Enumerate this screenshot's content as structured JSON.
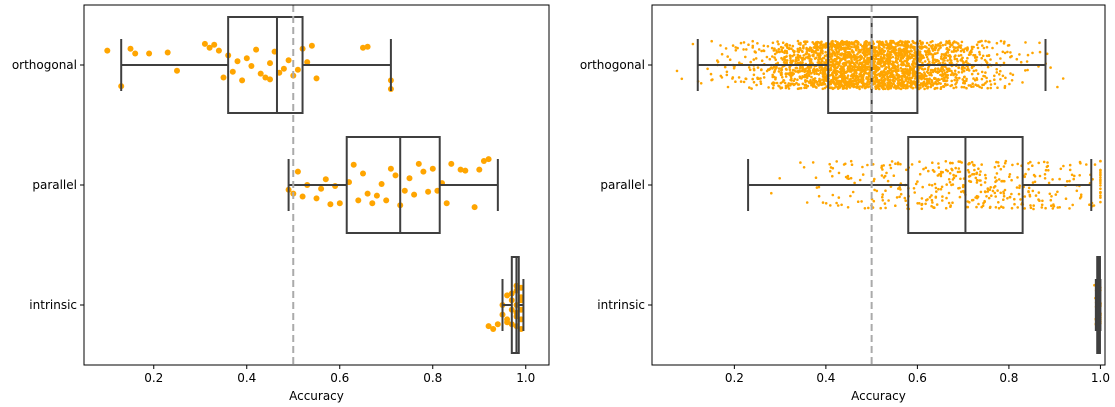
{
  "chart_data": [
    {
      "type": "box",
      "orientation": "horizontal",
      "title": "",
      "xlabel": "Accuracy",
      "ylabel": "",
      "xlim": [
        0.05,
        1.05
      ],
      "xticks": [
        0.2,
        0.4,
        0.6,
        0.8,
        1.0
      ],
      "xtick_labels": [
        "0.2",
        "0.4",
        "0.6",
        "0.8",
        "1.0"
      ],
      "reference_line": {
        "x": 0.5,
        "style": "dashed",
        "color": "#aaaaaa"
      },
      "categories": [
        "orthogonal",
        "parallel",
        "intrinsic"
      ],
      "boxes": [
        {
          "category": "orthogonal",
          "whisker_low": 0.13,
          "q1": 0.36,
          "median": 0.465,
          "q3": 0.52,
          "whisker_high": 0.71
        },
        {
          "category": "parallel",
          "whisker_low": 0.49,
          "q1": 0.615,
          "median": 0.73,
          "q3": 0.815,
          "whisker_high": 0.94
        },
        {
          "category": "intrinsic",
          "whisker_low": 0.95,
          "q1": 0.97,
          "median": 0.98,
          "q3": 0.985,
          "whisker_high": 0.995
        }
      ],
      "points": {
        "orthogonal": [
          [
            0.1,
            -0.15
          ],
          [
            0.13,
            0.22
          ],
          [
            0.15,
            -0.17
          ],
          [
            0.16,
            -0.12
          ],
          [
            0.19,
            -0.12
          ],
          [
            0.23,
            -0.13
          ],
          [
            0.25,
            0.06
          ],
          [
            0.31,
            -0.22
          ],
          [
            0.32,
            -0.18
          ],
          [
            0.33,
            -0.21
          ],
          [
            0.34,
            -0.15
          ],
          [
            0.35,
            0.13
          ],
          [
            0.36,
            -0.1
          ],
          [
            0.37,
            0.07
          ],
          [
            0.38,
            -0.04
          ],
          [
            0.39,
            0.16
          ],
          [
            0.4,
            -0.07
          ],
          [
            0.41,
            0.01
          ],
          [
            0.42,
            -0.16
          ],
          [
            0.43,
            0.09
          ],
          [
            0.44,
            0.13
          ],
          [
            0.45,
            -0.02
          ],
          [
            0.45,
            0.15
          ],
          [
            0.46,
            -0.14
          ],
          [
            0.47,
            0.08
          ],
          [
            0.48,
            0.04
          ],
          [
            0.49,
            -0.05
          ],
          [
            0.5,
            0.11
          ],
          [
            0.51,
            0.05
          ],
          [
            0.52,
            -0.17
          ],
          [
            0.53,
            -0.03
          ],
          [
            0.54,
            -0.2
          ],
          [
            0.55,
            0.14
          ],
          [
            0.65,
            -0.18
          ],
          [
            0.66,
            -0.19
          ],
          [
            0.71,
            0.16
          ],
          [
            0.71,
            0.25
          ]
        ],
        "parallel": [
          [
            0.49,
            0.05
          ],
          [
            0.5,
            0.09
          ],
          [
            0.51,
            -0.14
          ],
          [
            0.52,
            0.12
          ],
          [
            0.53,
            0.0
          ],
          [
            0.55,
            0.14
          ],
          [
            0.56,
            0.04
          ],
          [
            0.57,
            -0.06
          ],
          [
            0.58,
            0.2
          ],
          [
            0.59,
            0.01
          ],
          [
            0.6,
            0.19
          ],
          [
            0.62,
            -0.03
          ],
          [
            0.63,
            -0.21
          ],
          [
            0.64,
            0.16
          ],
          [
            0.65,
            -0.12
          ],
          [
            0.66,
            0.09
          ],
          [
            0.67,
            0.19
          ],
          [
            0.68,
            0.11
          ],
          [
            0.69,
            -0.01
          ],
          [
            0.7,
            0.16
          ],
          [
            0.71,
            -0.17
          ],
          [
            0.72,
            -0.1
          ],
          [
            0.73,
            0.21
          ],
          [
            0.74,
            0.06
          ],
          [
            0.75,
            -0.07
          ],
          [
            0.76,
            0.1
          ],
          [
            0.77,
            -0.22
          ],
          [
            0.78,
            -0.14
          ],
          [
            0.79,
            0.07
          ],
          [
            0.8,
            -0.17
          ],
          [
            0.81,
            0.06
          ],
          [
            0.82,
            -0.02
          ],
          [
            0.83,
            0.19
          ],
          [
            0.84,
            -0.22
          ],
          [
            0.86,
            -0.16
          ],
          [
            0.87,
            -0.15
          ],
          [
            0.89,
            0.23
          ],
          [
            0.9,
            -0.16
          ],
          [
            0.91,
            -0.25
          ],
          [
            0.92,
            -0.27
          ]
        ],
        "intrinsic": [
          [
            0.92,
            0.22
          ],
          [
            0.93,
            0.25
          ],
          [
            0.94,
            0.2
          ],
          [
            0.95,
            0.0
          ],
          [
            0.95,
            0.1
          ],
          [
            0.96,
            -0.1
          ],
          [
            0.96,
            0.15
          ],
          [
            0.97,
            0.05
          ],
          [
            0.97,
            -0.05
          ],
          [
            0.97,
            0.2
          ],
          [
            0.98,
            -0.2
          ],
          [
            0.98,
            0.0
          ],
          [
            0.98,
            0.12
          ],
          [
            0.98,
            -0.15
          ],
          [
            0.98,
            0.22
          ],
          [
            0.99,
            0.05
          ],
          [
            0.99,
            -0.05
          ],
          [
            0.99,
            0.15
          ],
          [
            0.99,
            -0.18
          ],
          [
            0.99,
            0.25
          ],
          [
            0.96,
            0.18
          ],
          [
            0.97,
            -0.12
          ],
          [
            0.98,
            0.08
          ],
          [
            0.99,
            -0.08
          ]
        ]
      }
    },
    {
      "type": "box",
      "orientation": "horizontal",
      "title": "",
      "xlabel": "Accuracy",
      "ylabel": "",
      "xlim": [
        0.02,
        1.01
      ],
      "xticks": [
        0.2,
        0.4,
        0.6,
        0.8,
        1.0
      ],
      "xtick_labels": [
        "0.2",
        "0.4",
        "0.6",
        "0.8",
        "1.0"
      ],
      "reference_line": {
        "x": 0.5,
        "style": "dashed",
        "color": "#aaaaaa"
      },
      "categories": [
        "orthogonal",
        "parallel",
        "intrinsic"
      ],
      "boxes": [
        {
          "category": "orthogonal",
          "whisker_low": 0.12,
          "q1": 0.405,
          "median": 0.5,
          "q3": 0.6,
          "whisker_high": 0.88
        },
        {
          "category": "parallel",
          "whisker_low": 0.23,
          "q1": 0.58,
          "median": 0.705,
          "q3": 0.83,
          "whisker_high": 0.98
        },
        {
          "category": "intrinsic",
          "whisker_low": 0.99,
          "q1": 0.993,
          "median": 0.996,
          "q3": 0.999,
          "whisker_high": 1.0
        }
      ],
      "jitter": {
        "orthogonal": {
          "count": 2600,
          "mean": 0.5,
          "sd": 0.13,
          "min": 0.05,
          "max": 0.96,
          "spread": 0.25
        },
        "parallel": {
          "count": 420,
          "mean": 0.72,
          "sd": 0.17,
          "min": 0.18,
          "max": 1.0,
          "spread": 0.25
        },
        "intrinsic": {
          "count": 70,
          "mean": 0.996,
          "sd": 0.004,
          "min": 0.975,
          "max": 1.0,
          "spread": 0.22
        }
      }
    }
  ]
}
